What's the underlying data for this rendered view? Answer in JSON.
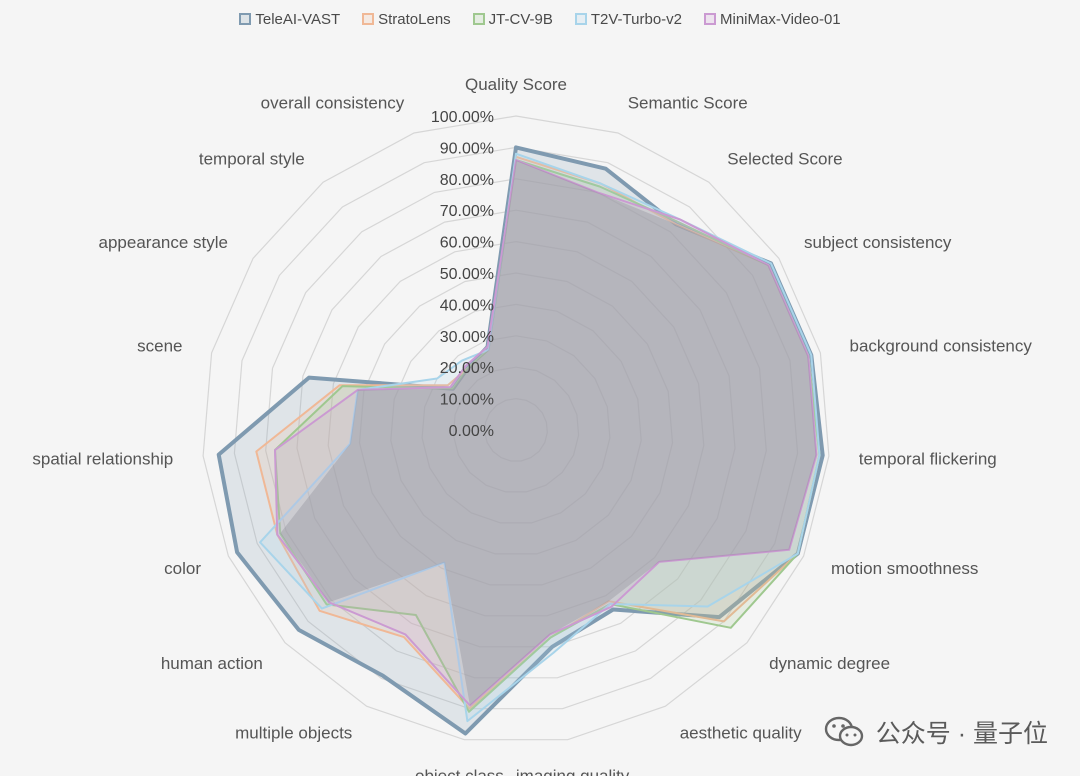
{
  "chart_data": {
    "type": "radar",
    "axes": [
      "Quality Score",
      "Semantic Score",
      "Selected Score",
      "subject consistency",
      "background consistency",
      "temporal flickering",
      "motion smoothness",
      "dynamic degree",
      "aesthetic quality",
      "imaging quality",
      "object class",
      "multiple objects",
      "human action",
      "color",
      "spatial relationship",
      "scene",
      "appearance style",
      "temporal style",
      "overall consistency"
    ],
    "tick_labels": [
      "0.00%",
      "10.00%",
      "20.00%",
      "30.00%",
      "40.00%",
      "50.00%",
      "60.00%",
      "70.00%",
      "80.00%",
      "90.00%",
      "100.00%"
    ],
    "range": [
      0,
      100
    ],
    "series": [
      {
        "name": "TeleAI-VAST",
        "color": "#7f9ab0",
        "values": [
          90,
          88,
          83,
          97,
          97,
          98,
          98,
          88,
          65,
          70,
          98,
          89,
          94,
          97,
          95,
          68,
          24,
          25,
          28
        ]
      },
      {
        "name": "StratoLens",
        "color": "#f0b896",
        "values": [
          87,
          83,
          83,
          96,
          96,
          97,
          98,
          90,
          62,
          67,
          90,
          75,
          85,
          83,
          83,
          58,
          26,
          25,
          27
        ]
      },
      {
        "name": "JT-CV-9B",
        "color": "#9fc88f",
        "values": [
          86,
          82,
          84,
          96,
          96,
          97,
          98,
          93,
          63,
          67,
          91,
          67,
          82,
          82,
          77,
          57,
          24,
          25,
          27
        ]
      },
      {
        "name": "T2V-Turbo-v2",
        "color": "#a8d4ea",
        "values": [
          88,
          83,
          85,
          97,
          97,
          97,
          98,
          83,
          63,
          72,
          94,
          48,
          84,
          89,
          53,
          52,
          30,
          28,
          27
        ]
      },
      {
        "name": "MiniMax-Video-01",
        "color": "#cb9ad2",
        "values": [
          86,
          80,
          85,
          96,
          96,
          96,
          95,
          62,
          64,
          66,
          89,
          74,
          81,
          83,
          77,
          52,
          25,
          26,
          28
        ]
      }
    ]
  },
  "watermark": {
    "text": "公众号 · 量子位",
    "logo_icon": "wechat-icon"
  }
}
